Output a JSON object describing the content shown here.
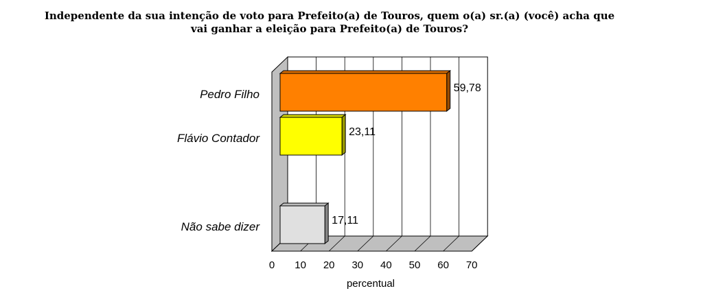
{
  "chart_data": {
    "type": "bar",
    "orientation": "horizontal",
    "three_d": true,
    "title_lines": [
      "Independente da sua intenção de voto para Prefeito(a) de Touros, quem o(a) sr.(a) (você) acha que",
      "vai ganhar a eleição para Prefeito(a) de Touros?"
    ],
    "categories": [
      "Pedro Filho",
      "Flávio Contador",
      "Não sabe dizer"
    ],
    "values": [
      59.78,
      23.11,
      17.11
    ],
    "value_labels": [
      "59,78",
      "23,11",
      "17,11"
    ],
    "colors": [
      "#FF8000",
      "#FFFF00",
      "#E0E0E0"
    ],
    "xlabel": "percentual",
    "xlim": [
      0,
      70
    ],
    "xticks": [
      0,
      10,
      20,
      30,
      40,
      50,
      60,
      70
    ],
    "grid": true,
    "legend": "none"
  }
}
